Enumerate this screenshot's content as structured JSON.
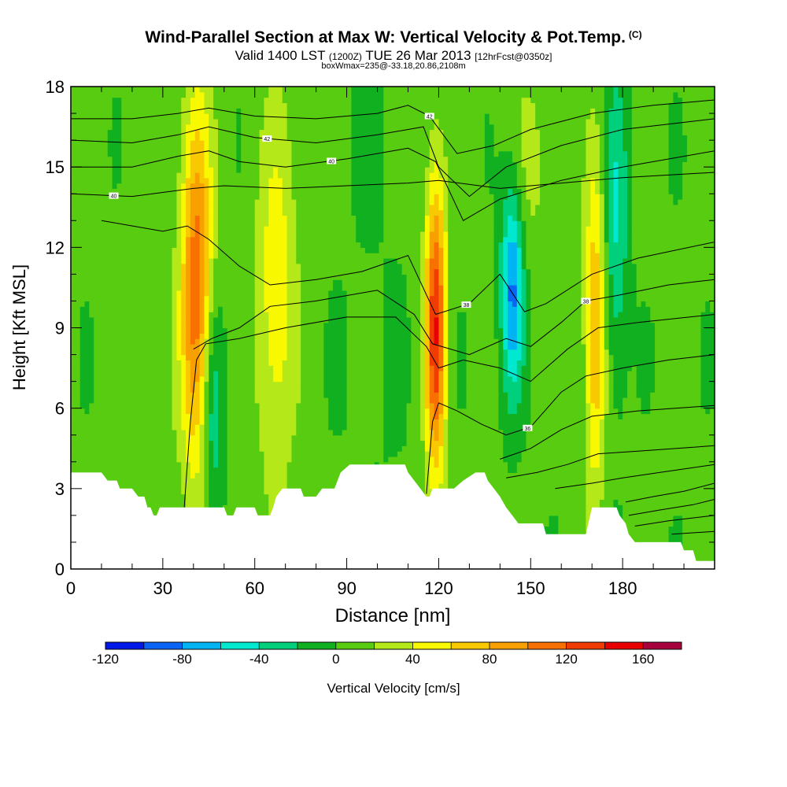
{
  "title": {
    "main": "Wind-Parallel Section at Max W: Vertical Velocity & Pot.Temp.",
    "copyright": "(C)",
    "valid_prefix": "Valid 1400 LST",
    "valid_utc": "(1200Z)",
    "valid_date": "TUE 26 Mar 2013",
    "forecast": "[12hrFcst@0350z]",
    "box_line": "boxWmax=235@-33.18,20.86,2108m"
  },
  "chart_data": {
    "type": "heatmap",
    "xlabel": "Distance [nm]",
    "ylabel": "Height [Kft MSL]",
    "xlim": [
      0,
      210
    ],
    "ylim": [
      0,
      18
    ],
    "x_ticks": [
      0,
      30,
      60,
      90,
      120,
      150,
      180
    ],
    "y_ticks": [
      0,
      3,
      6,
      9,
      12,
      15,
      18
    ],
    "colorbar": {
      "label": "Vertical Velocity [cm/s]",
      "ticks": [
        -120,
        -80,
        -40,
        0,
        40,
        80,
        120,
        160
      ],
      "bins": [
        {
          "from": -120,
          "to": -100,
          "color": "#0018e8"
        },
        {
          "from": -100,
          "to": -80,
          "color": "#0a64f4"
        },
        {
          "from": -80,
          "to": -60,
          "color": "#00b4f4"
        },
        {
          "from": -60,
          "to": -40,
          "color": "#00e8d0"
        },
        {
          "from": -40,
          "to": -20,
          "color": "#00d07c"
        },
        {
          "from": -20,
          "to": 0,
          "color": "#10b020"
        },
        {
          "from": 0,
          "to": 20,
          "color": "#58cc10"
        },
        {
          "from": 20,
          "to": 40,
          "color": "#b4e818"
        },
        {
          "from": 40,
          "to": 60,
          "color": "#f8f800"
        },
        {
          "from": 60,
          "to": 80,
          "color": "#f8c800"
        },
        {
          "from": 80,
          "to": 100,
          "color": "#f8a000"
        },
        {
          "from": 100,
          "to": 120,
          "color": "#f87000"
        },
        {
          "from": 120,
          "to": 140,
          "color": "#f03c00"
        },
        {
          "from": 140,
          "to": 160,
          "color": "#e80000"
        },
        {
          "from": 160,
          "to": 180,
          "color": "#a8003c"
        }
      ]
    },
    "updraft_columns": [
      {
        "center_nm": 41,
        "peak": 110
      },
      {
        "center_nm": 67,
        "peak": 50
      },
      {
        "center_nm": 119,
        "peak": 135
      },
      {
        "center_nm": 171,
        "peak": 75
      }
    ],
    "downdraft_columns": [
      {
        "center_nm": 46,
        "peak": -50
      },
      {
        "center_nm": 144,
        "peak": -90
      },
      {
        "center_nm": 178,
        "peak": -45
      }
    ],
    "terrain_top_kft": [
      [
        0,
        3.6
      ],
      [
        10,
        3.6
      ],
      [
        12,
        3.3
      ],
      [
        15,
        3.3
      ],
      [
        16,
        3.0
      ],
      [
        20,
        3.0
      ],
      [
        22,
        2.7
      ],
      [
        24,
        2.7
      ],
      [
        25,
        2.3
      ],
      [
        26,
        2.3
      ],
      [
        27,
        2.0
      ],
      [
        28,
        2.0
      ],
      [
        29,
        2.3
      ],
      [
        50,
        2.3
      ],
      [
        51,
        2.0
      ],
      [
        53,
        2.0
      ],
      [
        54,
        2.3
      ],
      [
        60,
        2.3
      ],
      [
        61,
        2.0
      ],
      [
        65,
        2.0
      ],
      [
        66,
        2.3
      ],
      [
        67,
        2.7
      ],
      [
        69,
        3.0
      ],
      [
        75,
        3.0
      ],
      [
        76,
        2.7
      ],
      [
        80,
        2.7
      ],
      [
        82,
        3.0
      ],
      [
        86,
        3.0
      ],
      [
        88,
        3.6
      ],
      [
        91,
        3.9
      ],
      [
        109,
        3.9
      ],
      [
        110,
        3.6
      ],
      [
        112,
        3.3
      ],
      [
        114,
        3.0
      ],
      [
        116,
        2.7
      ],
      [
        117,
        2.7
      ],
      [
        118,
        3.0
      ],
      [
        125,
        3.0
      ],
      [
        128,
        3.3
      ],
      [
        132,
        3.6
      ],
      [
        135,
        3.6
      ],
      [
        136,
        3.3
      ],
      [
        140,
        2.7
      ],
      [
        142,
        2.3
      ],
      [
        144,
        2.0
      ],
      [
        146,
        1.7
      ],
      [
        154,
        1.7
      ],
      [
        155,
        1.3
      ],
      [
        168,
        1.3
      ],
      [
        170,
        2.3
      ],
      [
        178,
        2.3
      ],
      [
        179,
        2.0
      ],
      [
        181,
        1.7
      ],
      [
        182,
        1.3
      ],
      [
        184,
        1.0
      ],
      [
        199,
        1.0
      ],
      [
        200,
        0.7
      ],
      [
        203,
        0.7
      ],
      [
        204,
        0.3
      ],
      [
        210,
        0.3
      ]
    ],
    "theta_contours": [
      {
        "label": "40",
        "x": 14,
        "points": [
          [
            0,
            14.0
          ],
          [
            20,
            13.9
          ],
          [
            40,
            14.2
          ],
          [
            50,
            14.3
          ],
          [
            70,
            14.2
          ],
          [
            90,
            14.3
          ],
          [
            110,
            14.4
          ],
          [
            120,
            14.5
          ],
          [
            140,
            14.2
          ],
          [
            160,
            14.4
          ],
          [
            180,
            14.6
          ],
          [
            210,
            14.8
          ]
        ]
      },
      {
        "label": "40",
        "x": 85,
        "points": [
          [
            0,
            15.0
          ],
          [
            20,
            15.0
          ],
          [
            35,
            15.4
          ],
          [
            45,
            15.6
          ],
          [
            55,
            15.2
          ],
          [
            70,
            15.0
          ],
          [
            90,
            15.3
          ],
          [
            110,
            15.7
          ],
          [
            119,
            15.2
          ],
          [
            128,
            13.0
          ],
          [
            140,
            13.8
          ],
          [
            160,
            14.5
          ],
          [
            180,
            15.0
          ],
          [
            210,
            15.6
          ]
        ]
      },
      {
        "label": "42",
        "x": 64,
        "points": [
          [
            0,
            16.0
          ],
          [
            20,
            15.9
          ],
          [
            35,
            16.2
          ],
          [
            45,
            16.5
          ],
          [
            60,
            16.1
          ],
          [
            80,
            15.9
          ],
          [
            100,
            16.2
          ],
          [
            115,
            16.5
          ],
          [
            120,
            15.0
          ],
          [
            130,
            13.9
          ],
          [
            142,
            15.0
          ],
          [
            160,
            15.8
          ],
          [
            180,
            16.4
          ],
          [
            210,
            16.8
          ]
        ]
      },
      {
        "label": "42",
        "x": 117,
        "points": [
          [
            0,
            16.8
          ],
          [
            20,
            16.8
          ],
          [
            35,
            17.0
          ],
          [
            45,
            17.2
          ],
          [
            60,
            16.9
          ],
          [
            80,
            16.8
          ],
          [
            100,
            17.0
          ],
          [
            110,
            17.3
          ],
          [
            117,
            16.9
          ],
          [
            126,
            15.5
          ],
          [
            138,
            15.8
          ],
          [
            150,
            16.4
          ],
          [
            170,
            17.0
          ],
          [
            190,
            17.3
          ],
          [
            210,
            17.5
          ]
        ]
      },
      {
        "label": "38",
        "x": 129,
        "points": [
          [
            10,
            13.0
          ],
          [
            30,
            12.6
          ],
          [
            38,
            12.8
          ],
          [
            45,
            12.3
          ],
          [
            55,
            11.3
          ],
          [
            65,
            10.6
          ],
          [
            80,
            10.8
          ],
          [
            95,
            11.1
          ],
          [
            110,
            11.7
          ],
          [
            119,
            9.5
          ],
          [
            130,
            9.9
          ],
          [
            140,
            11.0
          ],
          [
            148,
            9.6
          ],
          [
            155,
            9.9
          ],
          [
            170,
            11.0
          ],
          [
            185,
            11.6
          ],
          [
            210,
            12.2
          ]
        ]
      },
      {
        "label": "38",
        "x": 168,
        "points": [
          [
            40,
            8.2
          ],
          [
            46,
            8.6
          ],
          [
            55,
            9.0
          ],
          [
            65,
            9.8
          ],
          [
            80,
            10.0
          ],
          [
            100,
            10.4
          ],
          [
            112,
            9.5
          ],
          [
            118,
            8.4
          ],
          [
            130,
            8.0
          ],
          [
            142,
            8.6
          ],
          [
            150,
            8.3
          ],
          [
            160,
            9.2
          ],
          [
            168,
            10.0
          ],
          [
            178,
            10.2
          ],
          [
            195,
            10.6
          ],
          [
            210,
            10.8
          ]
        ]
      },
      {
        "label": "",
        "x": 0,
        "points": [
          [
            37,
            2.3
          ],
          [
            39,
            5.5
          ],
          [
            41,
            7.8
          ],
          [
            44,
            8.4
          ],
          [
            55,
            8.6
          ],
          [
            70,
            9.0
          ],
          [
            90,
            9.4
          ],
          [
            106,
            9.4
          ],
          [
            116,
            8.3
          ],
          [
            120,
            7.5
          ],
          [
            128,
            7.8
          ],
          [
            140,
            7.5
          ],
          [
            150,
            7.0
          ],
          [
            162,
            8.2
          ],
          [
            172,
            9.0
          ],
          [
            185,
            9.2
          ],
          [
            210,
            9.5
          ]
        ]
      },
      {
        "label": "36",
        "x": 149,
        "points": [
          [
            116,
            2.8
          ],
          [
            118,
            5.5
          ],
          [
            120,
            6.2
          ],
          [
            126,
            5.9
          ],
          [
            134,
            5.4
          ],
          [
            142,
            5.0
          ],
          [
            150,
            5.3
          ],
          [
            160,
            6.6
          ],
          [
            168,
            7.2
          ],
          [
            180,
            7.5
          ],
          [
            195,
            7.8
          ],
          [
            210,
            8.0
          ]
        ]
      },
      {
        "label": "",
        "x": 0,
        "points": [
          [
            140,
            4.1
          ],
          [
            150,
            4.5
          ],
          [
            160,
            5.2
          ],
          [
            170,
            5.7
          ],
          [
            185,
            5.9
          ],
          [
            210,
            6.1
          ]
        ]
      },
      {
        "label": "",
        "x": 0,
        "points": [
          [
            142,
            3.4
          ],
          [
            152,
            3.6
          ],
          [
            162,
            3.9
          ],
          [
            172,
            4.3
          ],
          [
            185,
            4.4
          ],
          [
            210,
            4.6
          ]
        ]
      },
      {
        "label": "",
        "x": 0,
        "points": [
          [
            158,
            3.0
          ],
          [
            170,
            3.2
          ],
          [
            180,
            3.4
          ],
          [
            192,
            3.6
          ],
          [
            210,
            3.9
          ]
        ]
      },
      {
        "label": "",
        "x": 0,
        "points": [
          [
            181,
            2.5
          ],
          [
            190,
            2.7
          ],
          [
            200,
            2.9
          ],
          [
            210,
            3.2
          ]
        ]
      },
      {
        "label": "",
        "x": 0,
        "points": [
          [
            182,
            2.0
          ],
          [
            192,
            2.2
          ],
          [
            203,
            2.4
          ],
          [
            210,
            2.6
          ]
        ]
      },
      {
        "label": "",
        "x": 0,
        "points": [
          [
            184,
            1.6
          ],
          [
            195,
            1.8
          ],
          [
            210,
            2.0
          ]
        ]
      },
      {
        "label": "",
        "x": 0,
        "points": [
          [
            196,
            1.3
          ],
          [
            210,
            1.4
          ]
        ]
      }
    ]
  }
}
